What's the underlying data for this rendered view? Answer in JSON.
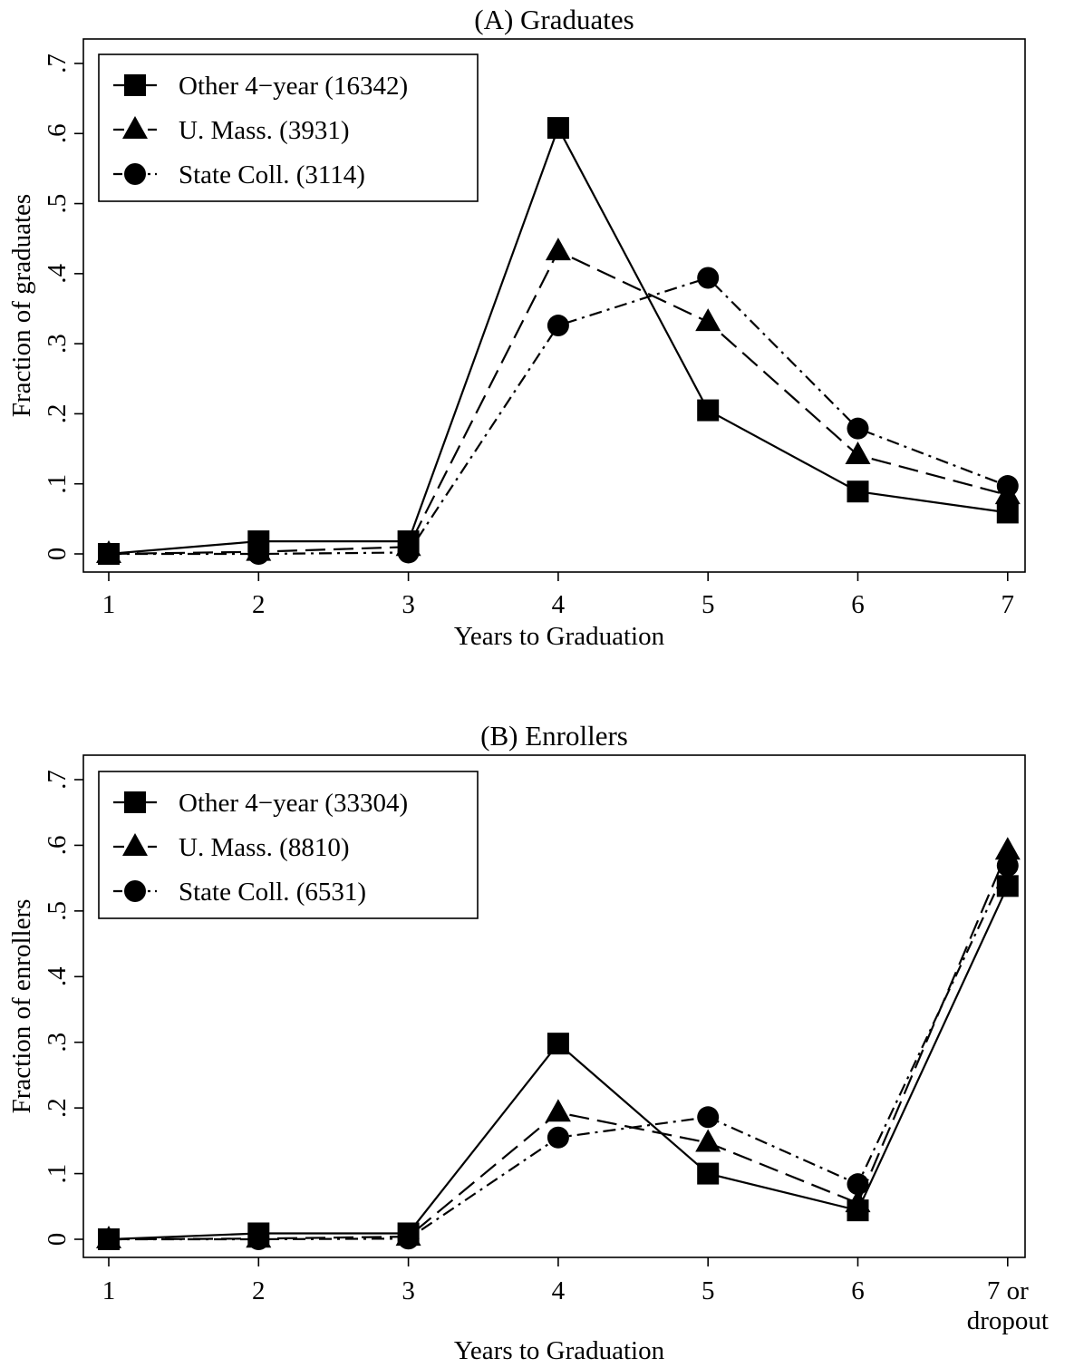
{
  "chart_data": [
    {
      "type": "line",
      "title": "(A) Graduates",
      "xlabel": "Years to Graduation",
      "ylabel": "Fraction of graduates",
      "x": [
        1,
        2,
        3,
        4,
        5,
        6,
        7
      ],
      "x_tick_labels": [
        "1",
        "2",
        "3",
        "4",
        "5",
        "6",
        "7"
      ],
      "ylim": [
        0,
        0.7
      ],
      "y_ticks": [
        0,
        0.1,
        0.2,
        0.3,
        0.4,
        0.5,
        0.6,
        0.7
      ],
      "y_tick_labels": [
        "0",
        ".1",
        ".2",
        ".3",
        ".4",
        ".5",
        ".6",
        ".7"
      ],
      "grid": false,
      "legend_position": "top-left",
      "series": [
        {
          "name": "Other 4−year (16342)",
          "marker": "square",
          "line": "solid",
          "values": [
            0.0,
            0.018,
            0.018,
            0.608,
            0.205,
            0.089,
            0.059
          ]
        },
        {
          "name": "U. Mass. (3931)",
          "marker": "triangle",
          "line": "dash",
          "values": [
            0.0,
            0.003,
            0.01,
            0.432,
            0.331,
            0.141,
            0.084
          ]
        },
        {
          "name": "State Coll. (3114)",
          "marker": "circle",
          "line": "dashdot",
          "values": [
            0.0,
            0.0,
            0.002,
            0.326,
            0.394,
            0.179,
            0.097
          ]
        }
      ]
    },
    {
      "type": "line",
      "title": "(B) Enrollers",
      "xlabel": "Years to Graduation",
      "ylabel": "Fraction of enrollers",
      "x": [
        1,
        2,
        3,
        4,
        5,
        6,
        7
      ],
      "x_tick_labels": [
        "1",
        "2",
        "3",
        "4",
        "5",
        "6",
        "7 or\ndropout"
      ],
      "ylim": [
        0,
        0.7
      ],
      "y_ticks": [
        0,
        0.1,
        0.2,
        0.3,
        0.4,
        0.5,
        0.6,
        0.7
      ],
      "y_tick_labels": [
        "0",
        ".1",
        ".2",
        ".3",
        ".4",
        ".5",
        ".6",
        ".7"
      ],
      "grid": false,
      "legend_position": "top-left",
      "series": [
        {
          "name": "Other 4−year (33304)",
          "marker": "square",
          "line": "solid",
          "values": [
            0.0,
            0.009,
            0.009,
            0.298,
            0.1,
            0.044,
            0.538
          ]
        },
        {
          "name": "U. Mass. (8810)",
          "marker": "triangle",
          "line": "dash",
          "values": [
            0.0,
            0.001,
            0.004,
            0.193,
            0.147,
            0.055,
            0.592
          ]
        },
        {
          "name": "State Coll. (6531)",
          "marker": "circle",
          "line": "dashdot",
          "values": [
            0.0,
            0.0,
            0.001,
            0.155,
            0.186,
            0.084,
            0.569
          ]
        }
      ]
    }
  ]
}
